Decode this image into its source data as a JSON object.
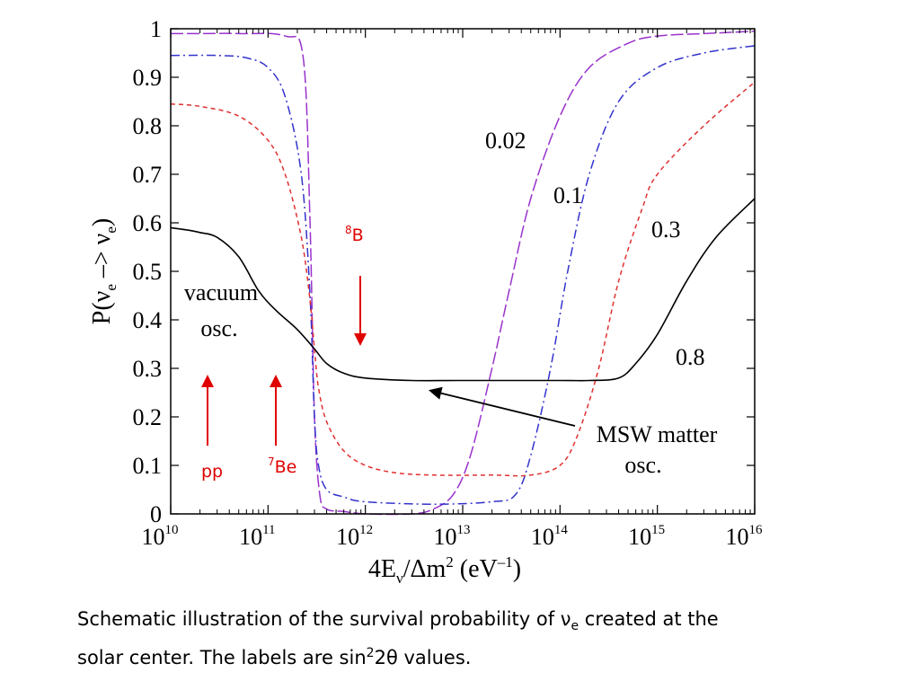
{
  "chart_data": {
    "type": "line",
    "xscale": "log",
    "xlim": [
      10000000000.0,
      1e+16
    ],
    "ylim": [
      0,
      1
    ],
    "grid": false,
    "ylabel": {
      "main": "P(ν",
      "sub1": "e",
      "mid": " –> ν",
      "sub2": "e",
      "end": ")"
    },
    "xlabel": {
      "main": "4E",
      "sub": "ν",
      "mid": "/Δm",
      "sup1": "2",
      "paren": " (eV",
      "sup2": "–1",
      "end": ")"
    },
    "y_ticks": [
      "0",
      "0.1",
      "0.2",
      "0.3",
      "0.4",
      "0.5",
      "0.6",
      "0.7",
      "0.8",
      "0.9",
      "1"
    ],
    "x_ticks": [
      {
        "base": "10",
        "exp": "10"
      },
      {
        "base": "10",
        "exp": "11"
      },
      {
        "base": "10",
        "exp": "12"
      },
      {
        "base": "10",
        "exp": "13"
      },
      {
        "base": "10",
        "exp": "14"
      },
      {
        "base": "10",
        "exp": "15"
      },
      {
        "base": "10",
        "exp": "16"
      }
    ],
    "series": [
      {
        "name": "0.02",
        "color": "#9933cc",
        "dash": "long-dash",
        "x": [
          10000000000.0,
          20000000000.0,
          50000000000.0,
          150000000000.0,
          230000000000.0,
          270000000000.0,
          300000000000.0,
          340000000000.0,
          400000000000.0,
          600000000000.0,
          1000000000000.0,
          3000000000000.0,
          5000000000000.0,
          8000000000000.0,
          12000000000000.0,
          20000000000000.0,
          30000000000000.0,
          50000000000000.0,
          100000000000000.0,
          200000000000000.0,
          500000000000000.0,
          1000000000000000.0,
          3000000000000000.0,
          1e+16
        ],
        "y": [
          0.99,
          0.99,
          0.99,
          0.985,
          0.94,
          0.6,
          0.2,
          0.04,
          0.01,
          0.005,
          0.0,
          0.0,
          0.01,
          0.04,
          0.12,
          0.3,
          0.46,
          0.65,
          0.82,
          0.92,
          0.97,
          0.985,
          0.99,
          0.995
        ]
      },
      {
        "name": "0.1",
        "color": "#3333cc",
        "dash": "dash-dot",
        "x": [
          10000000000.0,
          30000000000.0,
          60000000000.0,
          100000000000.0,
          150000000000.0,
          220000000000.0,
          270000000000.0,
          300000000000.0,
          330000000000.0,
          400000000000.0,
          600000000000.0,
          1000000000000.0,
          5000000000000.0,
          20000000000000.0,
          35000000000000.0,
          50000000000000.0,
          80000000000000.0,
          120000000000000.0,
          200000000000000.0,
          400000000000000.0,
          1000000000000000.0,
          3000000000000000.0,
          1e+16
        ],
        "y": [
          0.945,
          0.945,
          0.94,
          0.92,
          0.86,
          0.7,
          0.45,
          0.2,
          0.1,
          0.05,
          0.035,
          0.025,
          0.02,
          0.025,
          0.04,
          0.12,
          0.3,
          0.5,
          0.7,
          0.85,
          0.92,
          0.95,
          0.965
        ]
      },
      {
        "name": "0.3",
        "color": "#e03030",
        "dash": "short-dash",
        "x": [
          10000000000.0,
          20000000000.0,
          50000000000.0,
          100000000000.0,
          150000000000.0,
          220000000000.0,
          270000000000.0,
          300000000000.0,
          330000000000.0,
          400000000000.0,
          600000000000.0,
          1000000000000.0,
          2000000000000.0,
          5000000000000.0,
          20000000000000.0,
          50000000000000.0,
          100000000000000.0,
          150000000000000.0,
          250000000000000.0,
          400000000000000.0,
          700000000000000.0,
          1000000000000000.0,
          3000000000000000.0,
          1e+16
        ],
        "y": [
          0.845,
          0.84,
          0.82,
          0.77,
          0.7,
          0.57,
          0.44,
          0.34,
          0.26,
          0.19,
          0.13,
          0.1,
          0.085,
          0.08,
          0.08,
          0.08,
          0.1,
          0.16,
          0.3,
          0.48,
          0.63,
          0.7,
          0.8,
          0.89
        ]
      },
      {
        "name": "0.8",
        "color": "#000000",
        "dash": "solid",
        "x": [
          10000000000.0,
          15000000000.0,
          20000000000.0,
          30000000000.0,
          50000000000.0,
          80000000000.0,
          120000000000.0,
          200000000000.0,
          300000000000.0,
          400000000000.0,
          600000000000.0,
          1000000000000.0,
          3000000000000.0,
          10000000000000.0,
          100000000000000.0,
          200000000000000.0,
          400000000000000.0,
          600000000000000.0,
          1000000000000000.0,
          2000000000000000.0,
          4000000000000000.0,
          1e+16
        ],
        "y": [
          0.59,
          0.585,
          0.58,
          0.57,
          0.53,
          0.46,
          0.42,
          0.38,
          0.34,
          0.31,
          0.29,
          0.28,
          0.275,
          0.275,
          0.275,
          0.275,
          0.28,
          0.31,
          0.37,
          0.48,
          0.57,
          0.65
        ]
      }
    ],
    "annotations": {
      "curve_labels": [
        "0.02",
        "0.1",
        "0.3",
        "0.8"
      ],
      "vacuum": [
        "vacuum",
        "osc."
      ],
      "msw": [
        "MSW matter",
        "osc."
      ],
      "boron": {
        "sup": "8",
        "text": "B"
      },
      "beryllium": {
        "sup": "7",
        "text": "Be"
      },
      "pp": "pp",
      "arrow_color": "#e00000"
    }
  },
  "caption": {
    "line1_start": "Schematic illustration of the survival probability of ν",
    "line1_sub": "e",
    "line1_end": " created at the",
    "line2_start": "solar center. The labels are sin",
    "line2_sup": "2",
    "line2_end": "2θ values."
  }
}
